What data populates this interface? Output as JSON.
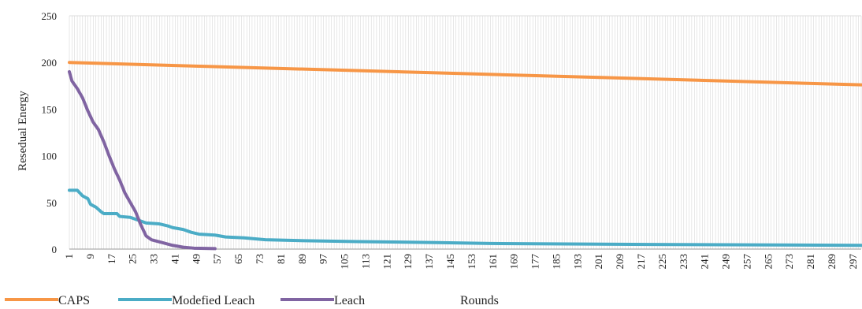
{
  "chart_data": {
    "type": "line",
    "title": "",
    "xlabel": "Rounds",
    "ylabel": "Resedual Energy",
    "ylim": [
      0,
      250
    ],
    "yticks": [
      0,
      50,
      100,
      150,
      200,
      250
    ],
    "x_range": [
      1,
      300
    ],
    "xtick_start": 1,
    "xtick_step": 8,
    "grid": "vertical per round",
    "legend_position": "bottom-left",
    "series": [
      {
        "name": "CAPS",
        "color": "#f79646",
        "points": [
          [
            1,
            200
          ],
          [
            50,
            196
          ],
          [
            100,
            192
          ],
          [
            150,
            188
          ],
          [
            200,
            184
          ],
          [
            250,
            180
          ],
          [
            300,
            176
          ]
        ]
      },
      {
        "name": "Modefied Leach",
        "color": "#4bacc6",
        "points": [
          [
            1,
            63
          ],
          [
            4,
            63
          ],
          [
            6,
            57
          ],
          [
            8,
            54
          ],
          [
            9,
            48
          ],
          [
            11,
            45
          ],
          [
            13,
            40
          ],
          [
            14,
            38
          ],
          [
            19,
            38
          ],
          [
            20,
            35
          ],
          [
            24,
            34
          ],
          [
            26,
            32
          ],
          [
            28,
            30
          ],
          [
            30,
            28
          ],
          [
            35,
            27
          ],
          [
            38,
            25
          ],
          [
            40,
            23
          ],
          [
            44,
            21
          ],
          [
            47,
            18
          ],
          [
            50,
            16
          ],
          [
            56,
            15
          ],
          [
            60,
            13
          ],
          [
            67,
            12
          ],
          [
            75,
            10
          ],
          [
            90,
            9
          ],
          [
            110,
            8
          ],
          [
            140,
            7
          ],
          [
            160,
            6
          ],
          [
            220,
            5
          ],
          [
            300,
            4
          ]
        ]
      },
      {
        "name": "Leach",
        "color": "#8064a2",
        "points": [
          [
            1,
            190
          ],
          [
            2,
            180
          ],
          [
            4,
            172
          ],
          [
            6,
            162
          ],
          [
            8,
            148
          ],
          [
            10,
            136
          ],
          [
            12,
            128
          ],
          [
            14,
            115
          ],
          [
            16,
            100
          ],
          [
            18,
            86
          ],
          [
            20,
            74
          ],
          [
            22,
            60
          ],
          [
            24,
            50
          ],
          [
            26,
            40
          ],
          [
            28,
            26
          ],
          [
            30,
            14
          ],
          [
            32,
            10
          ],
          [
            36,
            7
          ],
          [
            40,
            4
          ],
          [
            44,
            2
          ],
          [
            48,
            1
          ],
          [
            56,
            0.5
          ]
        ]
      }
    ]
  }
}
